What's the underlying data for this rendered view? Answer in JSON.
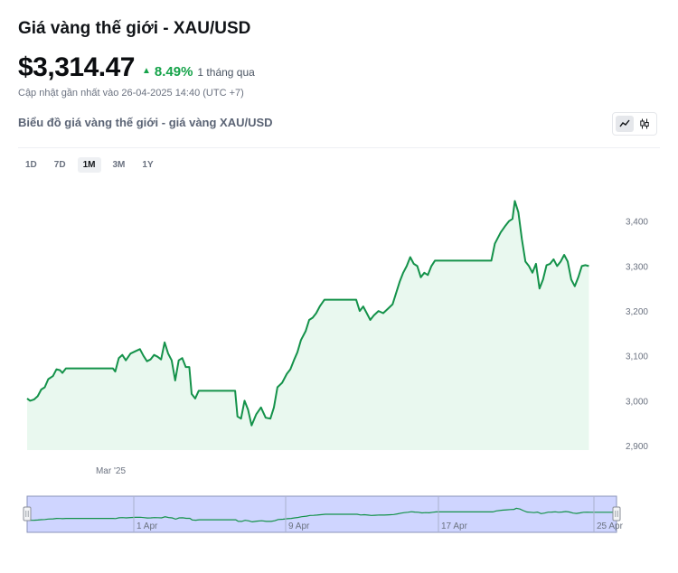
{
  "header": {
    "title": "Giá vàng thế giới - XAU/USD",
    "price": "$3,314.47",
    "change": "8.49%",
    "change_period": "1 tháng qua",
    "updated": "Cập nhật gần nhất vào 26-04-2025 14:40 (UTC +7)",
    "subtitle": "Biểu đồ giá vàng thế giới - giá vàng XAU/USD"
  },
  "chart_type_toggle": {
    "options": [
      "line-chart-icon",
      "candlestick-icon"
    ],
    "active": 0
  },
  "ranges": {
    "items": [
      "1D",
      "7D",
      "1M",
      "3M",
      "1Y"
    ],
    "active": "1M"
  },
  "colors": {
    "line": "#14924a",
    "area": "#e9f8ef",
    "up": "#16a34a",
    "navigator_fill": "#cfd5ff"
  },
  "chart_data": {
    "type": "area",
    "title": "",
    "xlabel": "",
    "ylabel": "",
    "ylim": [
      2890,
      3480
    ],
    "y_ticks": [
      2900,
      3000,
      3100,
      3200,
      3300,
      3400
    ],
    "y_tick_labels": [
      "2,900",
      "3,000",
      "3,100",
      "3,200",
      "3,300",
      "3,400"
    ],
    "x_tick_labels": [
      {
        "label": "Mar '25",
        "x": 0.15
      }
    ],
    "x_range": [
      0,
      1
    ],
    "grid": false,
    "series": [
      {
        "values": [
          [
            0.0,
            3005
          ],
          [
            0.005,
            3000
          ],
          [
            0.012,
            3003
          ],
          [
            0.018,
            3010
          ],
          [
            0.024,
            3025
          ],
          [
            0.03,
            3030
          ],
          [
            0.036,
            3048
          ],
          [
            0.044,
            3055
          ],
          [
            0.05,
            3070
          ],
          [
            0.056,
            3068
          ],
          [
            0.06,
            3062
          ],
          [
            0.066,
            3072
          ],
          [
            0.074,
            3072
          ],
          [
            0.09,
            3072
          ],
          [
            0.11,
            3072
          ],
          [
            0.13,
            3072
          ],
          [
            0.146,
            3072
          ],
          [
            0.15,
            3065
          ],
          [
            0.156,
            3095
          ],
          [
            0.162,
            3102
          ],
          [
            0.168,
            3090
          ],
          [
            0.176,
            3105
          ],
          [
            0.184,
            3110
          ],
          [
            0.192,
            3115
          ],
          [
            0.198,
            3100
          ],
          [
            0.204,
            3088
          ],
          [
            0.21,
            3092
          ],
          [
            0.216,
            3102
          ],
          [
            0.222,
            3098
          ],
          [
            0.228,
            3092
          ],
          [
            0.234,
            3130
          ],
          [
            0.24,
            3105
          ],
          [
            0.246,
            3090
          ],
          [
            0.252,
            3045
          ],
          [
            0.258,
            3090
          ],
          [
            0.264,
            3095
          ],
          [
            0.27,
            3075
          ],
          [
            0.276,
            3075
          ],
          [
            0.28,
            3015
          ],
          [
            0.286,
            3005
          ],
          [
            0.292,
            3022
          ],
          [
            0.3,
            3022
          ],
          [
            0.32,
            3022
          ],
          [
            0.34,
            3022
          ],
          [
            0.354,
            3022
          ],
          [
            0.358,
            2965
          ],
          [
            0.364,
            2960
          ],
          [
            0.37,
            3000
          ],
          [
            0.376,
            2980
          ],
          [
            0.382,
            2945
          ],
          [
            0.39,
            2970
          ],
          [
            0.398,
            2985
          ],
          [
            0.406,
            2962
          ],
          [
            0.414,
            2960
          ],
          [
            0.42,
            2985
          ],
          [
            0.426,
            3030
          ],
          [
            0.434,
            3040
          ],
          [
            0.442,
            3060
          ],
          [
            0.448,
            3070
          ],
          [
            0.454,
            3090
          ],
          [
            0.46,
            3108
          ],
          [
            0.466,
            3135
          ],
          [
            0.474,
            3155
          ],
          [
            0.48,
            3180
          ],
          [
            0.486,
            3185
          ],
          [
            0.492,
            3195
          ],
          [
            0.498,
            3210
          ],
          [
            0.506,
            3225
          ],
          [
            0.52,
            3225
          ],
          [
            0.54,
            3225
          ],
          [
            0.56,
            3225
          ],
          [
            0.566,
            3200
          ],
          [
            0.572,
            3210
          ],
          [
            0.578,
            3195
          ],
          [
            0.584,
            3180
          ],
          [
            0.59,
            3190
          ],
          [
            0.598,
            3200
          ],
          [
            0.606,
            3195
          ],
          [
            0.614,
            3205
          ],
          [
            0.622,
            3215
          ],
          [
            0.628,
            3240
          ],
          [
            0.634,
            3265
          ],
          [
            0.64,
            3285
          ],
          [
            0.646,
            3300
          ],
          [
            0.652,
            3320
          ],
          [
            0.658,
            3305
          ],
          [
            0.664,
            3300
          ],
          [
            0.67,
            3275
          ],
          [
            0.676,
            3285
          ],
          [
            0.682,
            3280
          ],
          [
            0.688,
            3300
          ],
          [
            0.694,
            3312
          ],
          [
            0.71,
            3312
          ],
          [
            0.74,
            3312
          ],
          [
            0.77,
            3312
          ],
          [
            0.79,
            3312
          ],
          [
            0.796,
            3350
          ],
          [
            0.806,
            3375
          ],
          [
            0.814,
            3390
          ],
          [
            0.82,
            3400
          ],
          [
            0.826,
            3405
          ],
          [
            0.83,
            3445
          ],
          [
            0.836,
            3420
          ],
          [
            0.842,
            3360
          ],
          [
            0.848,
            3310
          ],
          [
            0.854,
            3300
          ],
          [
            0.86,
            3285
          ],
          [
            0.866,
            3305
          ],
          [
            0.872,
            3250
          ],
          [
            0.878,
            3270
          ],
          [
            0.884,
            3302
          ],
          [
            0.89,
            3305
          ],
          [
            0.896,
            3315
          ],
          [
            0.902,
            3300
          ],
          [
            0.908,
            3310
          ],
          [
            0.914,
            3325
          ],
          [
            0.92,
            3310
          ],
          [
            0.926,
            3270
          ],
          [
            0.932,
            3255
          ],
          [
            0.938,
            3275
          ],
          [
            0.944,
            3300
          ],
          [
            0.95,
            3302
          ],
          [
            0.956,
            3300
          ]
        ]
      }
    ],
    "navigator": {
      "labels": [
        "1 Apr",
        "9 Apr",
        "17 Apr",
        "25 Apr"
      ]
    }
  }
}
